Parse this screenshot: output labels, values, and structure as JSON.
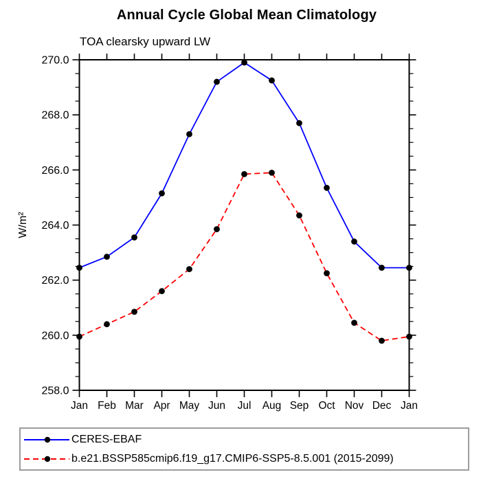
{
  "colors": {
    "background": "#ffffff",
    "axis": "#000000",
    "text": "#000000",
    "marker": "#000000",
    "legend_border": "#9c9c9c",
    "series_blue": "#0000ff",
    "series_red": "#ff0000"
  },
  "chart_data": {
    "type": "line",
    "title": "Annual Cycle Global Mean Climatology",
    "subtitle": "TOA clearsky upward LW",
    "ylabel": "W/m²",
    "xlabel": "",
    "x_tick_labels": [
      "Jan",
      "Feb",
      "Mar",
      "Apr",
      "May",
      "Jun",
      "Jul",
      "Aug",
      "Sep",
      "Oct",
      "Nov",
      "Dec",
      "Jan"
    ],
    "ylim": [
      258.0,
      270.0
    ],
    "y_major_step": 2.0,
    "y_minor_step": 0.5,
    "y_tick_decimals": 1,
    "grid": false,
    "legend_position": "bottom-left-box",
    "series": [
      {
        "name": "CERES-EBAF",
        "color": "#0000ff",
        "line_style": "solid",
        "marker": "filled-circle",
        "marker_color": "#000000",
        "values": [
          262.45,
          262.85,
          263.55,
          265.15,
          267.3,
          269.2,
          269.9,
          269.25,
          267.7,
          265.35,
          263.4,
          262.45,
          262.45
        ]
      },
      {
        "name": "b.e21.BSSP585cmip6.f19_g17.CMIP6-SSP5-8.5.001 (2015-2099)",
        "color": "#ff0000",
        "line_style": "dashed",
        "marker": "filled-circle",
        "marker_color": "#000000",
        "values": [
          259.95,
          260.4,
          260.85,
          261.6,
          262.4,
          263.85,
          265.85,
          265.9,
          264.35,
          262.25,
          260.45,
          259.8,
          259.95
        ]
      }
    ]
  }
}
